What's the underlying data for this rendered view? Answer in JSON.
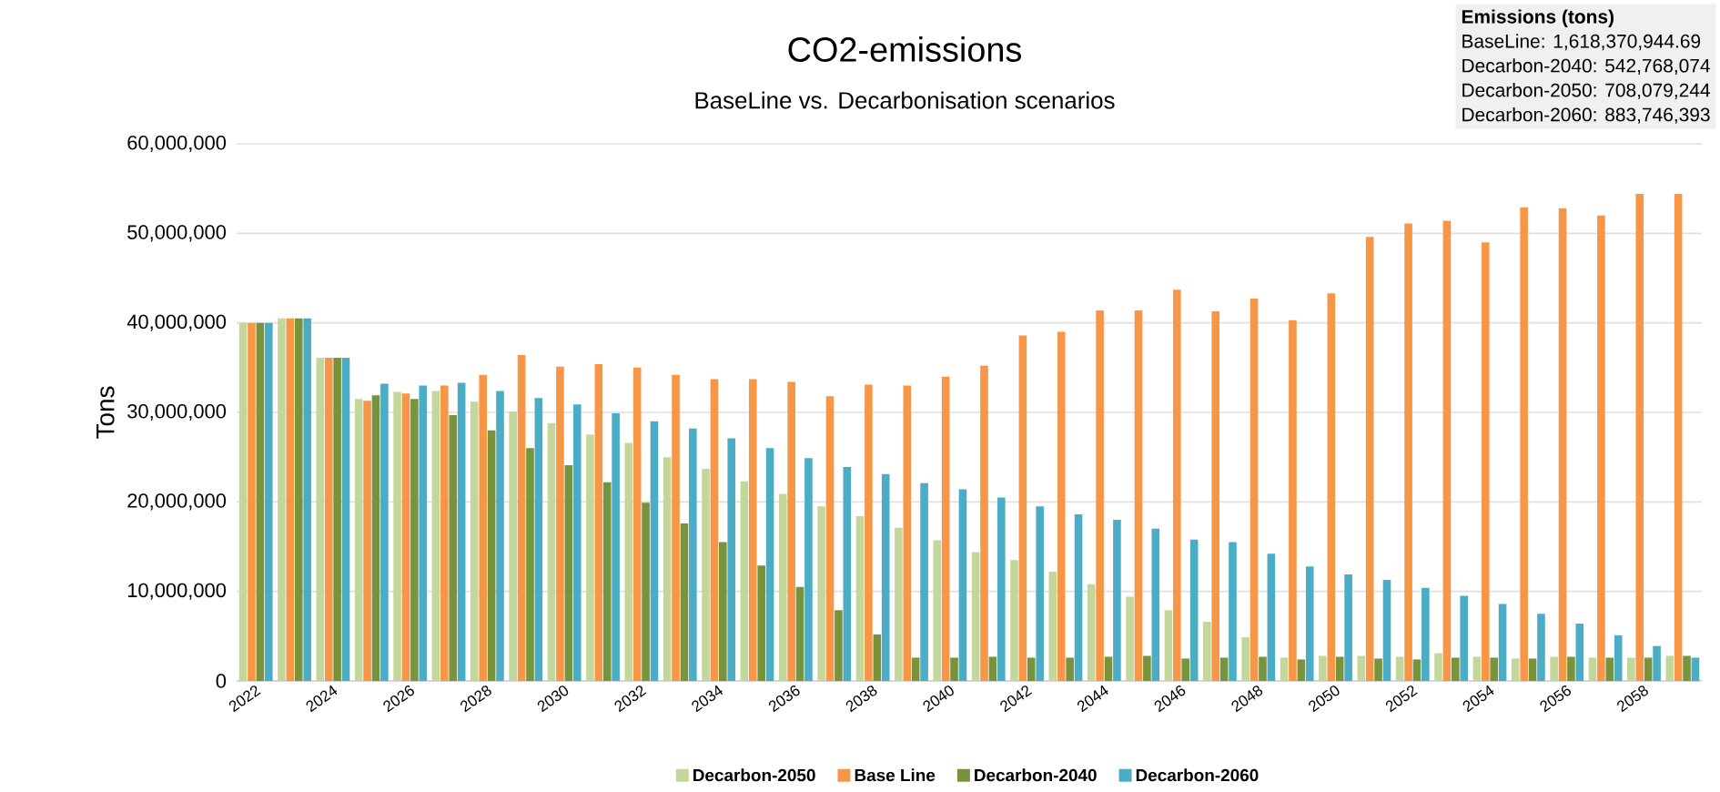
{
  "chart_data": {
    "type": "bar",
    "title": "CO2-emissions",
    "subtitle": "BaseLine vs. Decarbonisation scenarios",
    "ylabel": "Tons",
    "categories": [
      "2022",
      null,
      "2024",
      null,
      "2026",
      null,
      "2028",
      null,
      "2030",
      null,
      "2032",
      null,
      "2034",
      null,
      "2036",
      null,
      "2038",
      null,
      "2040",
      null,
      "2042",
      null,
      "2044",
      null,
      "2046",
      null,
      "2048",
      null,
      "2050",
      null,
      "2052",
      null,
      "2054",
      null,
      "2056",
      null,
      "2058",
      null
    ],
    "series": [
      {
        "name": "Decarbon-2050",
        "color": "#c4d79b",
        "values": [
          40000000,
          40500000,
          36100000,
          31500000,
          32300000,
          32400000,
          31200000,
          30100000,
          28800000,
          27500000,
          26600000,
          25000000,
          23700000,
          22300000,
          20900000,
          19500000,
          18400000,
          17100000,
          15700000,
          14400000,
          13500000,
          12200000,
          10800000,
          9400000,
          7900000,
          6600000,
          4900000,
          2600000,
          2800000,
          2800000,
          2700000,
          3100000,
          2700000,
          2500000,
          2700000,
          2600000,
          2600000,
          2800000
        ]
      },
      {
        "name": "Base Line",
        "color": "#f79646",
        "values": [
          40000000,
          40500000,
          36100000,
          31300000,
          32100000,
          33000000,
          34200000,
          36400000,
          35100000,
          35400000,
          35000000,
          34200000,
          33700000,
          33700000,
          33400000,
          31800000,
          33100000,
          33000000,
          34000000,
          35200000,
          38600000,
          39000000,
          41400000,
          41400000,
          43700000,
          41300000,
          42700000,
          40300000,
          43300000,
          49600000,
          51100000,
          51400000,
          49000000,
          52900000,
          52800000,
          52000000,
          54400000,
          54400000
        ]
      },
      {
        "name": "Decarbon-2040",
        "color": "#77933c",
        "values": [
          40000000,
          40500000,
          36100000,
          31900000,
          31500000,
          29700000,
          28000000,
          26000000,
          24100000,
          22200000,
          19900000,
          17600000,
          15500000,
          12900000,
          10500000,
          7900000,
          5200000,
          2600000,
          2600000,
          2700000,
          2600000,
          2600000,
          2700000,
          2800000,
          2500000,
          2600000,
          2700000,
          2400000,
          2700000,
          2500000,
          2400000,
          2600000,
          2600000,
          2500000,
          2700000,
          2600000,
          2600000,
          2800000
        ]
      },
      {
        "name": "Decarbon-2060",
        "color": "#4bacc6",
        "values": [
          40000000,
          40500000,
          36100000,
          33200000,
          33000000,
          33300000,
          32400000,
          31600000,
          30900000,
          29900000,
          29000000,
          28200000,
          27100000,
          26000000,
          24900000,
          23900000,
          23100000,
          22100000,
          21400000,
          20500000,
          19500000,
          18600000,
          18000000,
          17000000,
          15800000,
          15500000,
          14200000,
          12800000,
          11900000,
          11300000,
          10400000,
          9500000,
          8600000,
          7500000,
          6400000,
          5100000,
          3900000,
          2600000
        ]
      }
    ],
    "ylim": [
      0,
      60000000
    ],
    "yticks": [
      0,
      {
        "value": 10000000,
        "label": "10,000,000"
      },
      {
        "value": 20000000,
        "label": "20,000,000"
      },
      {
        "value": 30000000,
        "label": "30,000,000"
      },
      {
        "value": 40000000,
        "label": "40,000,000"
      },
      {
        "value": 50000000,
        "label": "50,000,000"
      },
      {
        "value": 60000000,
        "label": "60,000,000"
      }
    ],
    "grid": "y",
    "legend": "bottom",
    "annotations": [
      "**Emissions (tons)**",
      "BaseLine: 1,618,370,944.69",
      "Decarbon-2040:  542,768,074",
      "Decarbon-2050:  708,079,244",
      "Decarbon-2060: 883,746,393"
    ]
  }
}
